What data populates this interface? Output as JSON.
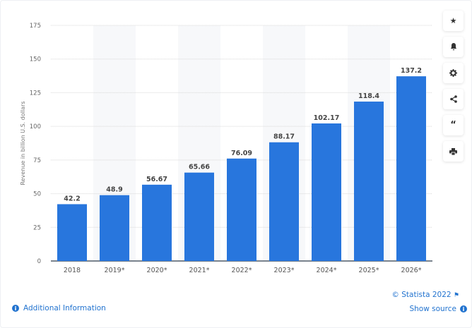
{
  "chart_data": {
    "type": "bar",
    "categories": [
      "2018",
      "2019*",
      "2020*",
      "2021*",
      "2022*",
      "2023*",
      "2024*",
      "2025*",
      "2026*"
    ],
    "values": [
      42.2,
      48.9,
      56.67,
      65.66,
      76.09,
      88.17,
      102.17,
      118.4,
      137.2
    ],
    "data_labels": [
      "42.2",
      "48.9",
      "56.67",
      "65.66",
      "76.09",
      "88.17",
      "102.17",
      "118.4",
      "137.2"
    ],
    "ylabel": "Revenue in billion U.S. dollars",
    "xlabel": "",
    "ylim": [
      0,
      175
    ],
    "yticks": [
      "0",
      "25",
      "50",
      "75",
      "100",
      "125",
      "150",
      "175"
    ],
    "grid": true,
    "bar_color": "#2876dd"
  },
  "footer": {
    "credit": "© Statista 2022",
    "show_source": "Show source",
    "additional_info": "Additional Information"
  },
  "toolbar": [
    "star-icon",
    "bell-icon",
    "gear-icon",
    "share-icon",
    "quote-icon",
    "print-icon"
  ]
}
